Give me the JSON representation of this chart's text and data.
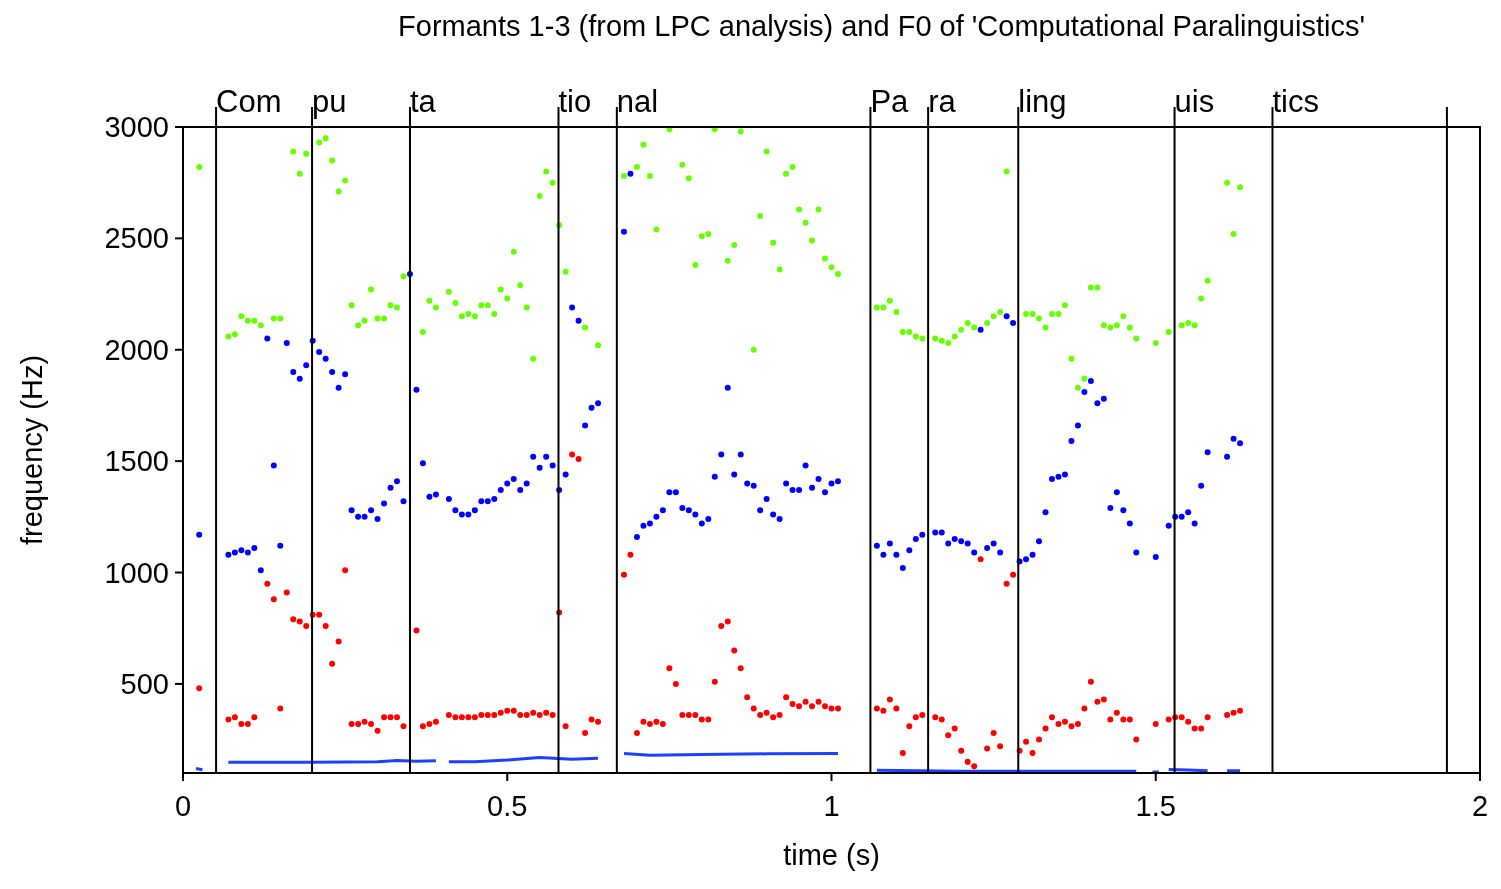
{
  "chart_data": {
    "type": "scatter",
    "title": "Formants 1-3 (from LPC analysis) and F0 of 'Computational Paralinguistics'",
    "xlabel": "time (s)",
    "ylabel": "frequency (Hz)",
    "xlim": [
      0,
      2
    ],
    "xticks": [
      0,
      0.5,
      1,
      1.5,
      2
    ],
    "ylim": [
      100,
      3000
    ],
    "yticks": [
      500,
      1000,
      1500,
      2000,
      2500,
      3000
    ],
    "marker": "circle",
    "grid": false,
    "ref_lines": [
      {
        "axis": "x",
        "value": 0.051,
        "label": "Com",
        "color": "#000000"
      },
      {
        "axis": "x",
        "value": 0.199,
        "label": "pu",
        "color": "#000000"
      },
      {
        "axis": "x",
        "value": 0.35,
        "label": "ta",
        "color": "#000000"
      },
      {
        "axis": "x",
        "value": 0.579,
        "label": "tio",
        "color": "#000000"
      },
      {
        "axis": "x",
        "value": 0.669,
        "label": "nal",
        "color": "#000000"
      },
      {
        "axis": "x",
        "value": 1.06,
        "label": "Pa",
        "color": "#000000"
      },
      {
        "axis": "x",
        "value": 1.149,
        "label": "ra",
        "color": "#000000"
      },
      {
        "axis": "x",
        "value": 1.288,
        "label": "ling",
        "color": "#000000"
      },
      {
        "axis": "x",
        "value": 1.529,
        "label": "uis",
        "color": "#000000"
      },
      {
        "axis": "x",
        "value": 1.68,
        "label": "tics",
        "color": "#000000"
      },
      {
        "axis": "x",
        "value": 1.949,
        "label": null,
        "color": "#000000"
      }
    ],
    "series": [
      {
        "color": "#ff0000",
        "x": [
          0.025,
          0.07,
          0.08,
          0.09,
          0.1,
          0.11,
          0.13,
          0.14,
          0.15,
          0.16,
          0.17,
          0.18,
          0.19,
          0.2,
          0.21,
          0.22,
          0.23,
          0.24,
          0.25,
          0.26,
          0.27,
          0.28,
          0.29,
          0.3,
          0.31,
          0.32,
          0.33,
          0.34,
          0.36,
          0.37,
          0.38,
          0.39,
          0.41,
          0.42,
          0.43,
          0.44,
          0.45,
          0.46,
          0.47,
          0.48,
          0.49,
          0.5,
          0.51,
          0.52,
          0.53,
          0.54,
          0.55,
          0.56,
          0.57,
          0.58,
          0.59,
          0.6,
          0.61,
          0.62,
          0.63,
          0.64,
          0.68,
          0.69,
          0.7,
          0.71,
          0.72,
          0.73,
          0.74,
          0.75,
          0.76,
          0.77,
          0.78,
          0.79,
          0.8,
          0.81,
          0.82,
          0.83,
          0.84,
          0.85,
          0.86,
          0.87,
          0.88,
          0.89,
          0.9,
          0.91,
          0.92,
          0.93,
          0.94,
          0.95,
          0.96,
          0.97,
          0.98,
          0.99,
          1.0,
          1.01,
          1.07,
          1.08,
          1.09,
          1.1,
          1.11,
          1.12,
          1.13,
          1.14,
          1.16,
          1.17,
          1.18,
          1.19,
          1.2,
          1.21,
          1.22,
          1.23,
          1.24,
          1.25,
          1.26,
          1.27,
          1.28,
          1.29,
          1.3,
          1.31,
          1.32,
          1.33,
          1.34,
          1.35,
          1.36,
          1.37,
          1.38,
          1.39,
          1.4,
          1.41,
          1.42,
          1.43,
          1.44,
          1.45,
          1.46,
          1.47,
          1.5,
          1.52,
          1.53,
          1.54,
          1.55,
          1.56,
          1.57,
          1.58,
          1.61,
          1.62,
          1.63
        ],
        "values": [
          480,
          340,
          350,
          320,
          320,
          350,
          950,
          880,
          390,
          910,
          790,
          780,
          760,
          810,
          810,
          760,
          590,
          690,
          1010,
          320,
          320,
          330,
          320,
          290,
          350,
          350,
          350,
          310,
          740,
          310,
          320,
          330,
          360,
          350,
          350,
          350,
          350,
          360,
          360,
          360,
          370,
          380,
          380,
          360,
          360,
          370,
          360,
          370,
          360,
          820,
          310,
          1530,
          1510,
          280,
          340,
          330,
          990,
          1080,
          280,
          330,
          320,
          330,
          320,
          570,
          500,
          360,
          360,
          360,
          340,
          340,
          510,
          760,
          780,
          650,
          570,
          440,
          390,
          360,
          370,
          350,
          360,
          440,
          410,
          400,
          420,
          400,
          420,
          400,
          390,
          390,
          390,
          380,
          430,
          390,
          190,
          310,
          350,
          360,
          350,
          340,
          270,
          300,
          200,
          150,
          130,
          1060,
          210,
          280,
          220,
          950,
          990,
          200,
          240,
          190,
          250,
          300,
          350,
          320,
          330,
          310,
          320,
          390,
          510,
          420,
          430,
          340,
          370,
          340,
          340,
          250,
          320,
          340,
          350,
          350,
          330,
          300,
          300,
          350,
          360,
          370,
          380
        ]
      },
      {
        "color": "#0000ff",
        "x": [
          0.025,
          0.07,
          0.08,
          0.09,
          0.1,
          0.11,
          0.12,
          0.13,
          0.14,
          0.15,
          0.16,
          0.17,
          0.18,
          0.19,
          0.2,
          0.21,
          0.22,
          0.23,
          0.24,
          0.25,
          0.26,
          0.27,
          0.28,
          0.29,
          0.3,
          0.31,
          0.32,
          0.33,
          0.34,
          0.35,
          0.36,
          0.37,
          0.38,
          0.39,
          0.41,
          0.42,
          0.43,
          0.44,
          0.45,
          0.46,
          0.47,
          0.48,
          0.49,
          0.5,
          0.51,
          0.52,
          0.53,
          0.54,
          0.55,
          0.56,
          0.57,
          0.58,
          0.59,
          0.6,
          0.61,
          0.62,
          0.63,
          0.64,
          0.68,
          0.69,
          0.7,
          0.71,
          0.72,
          0.73,
          0.74,
          0.75,
          0.76,
          0.77,
          0.78,
          0.79,
          0.8,
          0.81,
          0.82,
          0.83,
          0.84,
          0.85,
          0.86,
          0.87,
          0.88,
          0.89,
          0.9,
          0.91,
          0.92,
          0.93,
          0.94,
          0.95,
          0.96,
          0.97,
          0.98,
          0.99,
          1.0,
          1.01,
          1.07,
          1.08,
          1.09,
          1.1,
          1.11,
          1.12,
          1.13,
          1.14,
          1.16,
          1.17,
          1.18,
          1.19,
          1.2,
          1.21,
          1.22,
          1.23,
          1.24,
          1.25,
          1.26,
          1.27,
          1.28,
          1.29,
          1.3,
          1.31,
          1.32,
          1.33,
          1.34,
          1.35,
          1.36,
          1.37,
          1.38,
          1.39,
          1.4,
          1.41,
          1.42,
          1.43,
          1.44,
          1.45,
          1.46,
          1.47,
          1.5,
          1.52,
          1.53,
          1.54,
          1.55,
          1.56,
          1.57,
          1.58,
          1.61,
          1.62,
          1.63
        ],
        "values": [
          1170,
          1080,
          1090,
          1100,
          1090,
          1110,
          1010,
          2050,
          1480,
          1120,
          2030,
          1900,
          1870,
          1930,
          2040,
          1990,
          1960,
          1900,
          1830,
          1890,
          1280,
          1250,
          1250,
          1280,
          1240,
          1310,
          1380,
          1410,
          1320,
          2340,
          1820,
          1490,
          1340,
          1350,
          1330,
          1280,
          1260,
          1260,
          1280,
          1320,
          1320,
          1330,
          1370,
          1400,
          1420,
          1370,
          1400,
          1520,
          1470,
          1520,
          1480,
          1370,
          1440,
          2190,
          2130,
          1660,
          1740,
          1760,
          2530,
          2790,
          1160,
          1210,
          1220,
          1250,
          1280,
          1360,
          1360,
          1290,
          1280,
          1260,
          1220,
          1240,
          1430,
          1530,
          1830,
          1440,
          1530,
          1400,
          1390,
          1280,
          1330,
          1260,
          1240,
          1400,
          1370,
          1370,
          1480,
          1380,
          1420,
          1360,
          1400,
          1410,
          1120,
          1080,
          1130,
          1080,
          1020,
          1100,
          1150,
          1170,
          1180,
          1180,
          1130,
          1150,
          1140,
          1130,
          1090,
          2090,
          1110,
          1130,
          1090,
          2150,
          2120,
          1050,
          1060,
          1080,
          1140,
          1270,
          1420,
          1430,
          1440,
          1590,
          1660,
          1810,
          1860,
          1760,
          1780,
          1290,
          1360,
          1280,
          1220,
          1090,
          1070,
          1210,
          1250,
          1250,
          1270,
          1220,
          1390,
          1540,
          1520,
          1600,
          1580
        ]
      },
      {
        "color": "#66ff00",
        "x": [
          0.025,
          0.07,
          0.08,
          0.09,
          0.1,
          0.11,
          0.12,
          0.14,
          0.15,
          0.17,
          0.18,
          0.19,
          0.21,
          0.22,
          0.23,
          0.24,
          0.25,
          0.26,
          0.27,
          0.28,
          0.29,
          0.3,
          0.31,
          0.32,
          0.33,
          0.34,
          0.37,
          0.38,
          0.39,
          0.41,
          0.42,
          0.43,
          0.44,
          0.45,
          0.46,
          0.47,
          0.48,
          0.49,
          0.5,
          0.51,
          0.52,
          0.53,
          0.54,
          0.55,
          0.56,
          0.57,
          0.58,
          0.59,
          0.62,
          0.64,
          0.68,
          0.7,
          0.71,
          0.72,
          0.73,
          0.75,
          0.77,
          0.78,
          0.79,
          0.8,
          0.81,
          0.82,
          0.84,
          0.85,
          0.86,
          0.88,
          0.89,
          0.9,
          0.91,
          0.92,
          0.93,
          0.94,
          0.95,
          0.96,
          0.97,
          0.98,
          0.99,
          1.0,
          1.01,
          1.07,
          1.08,
          1.09,
          1.1,
          1.11,
          1.12,
          1.13,
          1.14,
          1.16,
          1.17,
          1.18,
          1.19,
          1.2,
          1.21,
          1.22,
          1.24,
          1.25,
          1.26,
          1.27,
          1.3,
          1.31,
          1.32,
          1.33,
          1.34,
          1.35,
          1.36,
          1.37,
          1.38,
          1.39,
          1.4,
          1.41,
          1.42,
          1.43,
          1.44,
          1.45,
          1.46,
          1.47,
          1.5,
          1.52,
          1.54,
          1.55,
          1.56,
          1.57,
          1.58,
          1.61,
          1.62,
          1.63
        ],
        "values": [
          2820,
          2060,
          2070,
          2150,
          2130,
          2130,
          2110,
          2140,
          2140,
          2890,
          2790,
          2880,
          2930,
          2950,
          2850,
          2710,
          2760,
          2200,
          2110,
          2130,
          2270,
          2140,
          2140,
          2200,
          2190,
          2330,
          2080,
          2220,
          2190,
          2260,
          2210,
          2150,
          2160,
          2150,
          2200,
          2200,
          2160,
          2270,
          2230,
          2440,
          2290,
          2190,
          1960,
          2690,
          2800,
          2750,
          2560,
          2350,
          2100,
          2020,
          2780,
          2820,
          2920,
          2780,
          2540,
          2990,
          2830,
          2770,
          2380,
          2510,
          2520,
          2990,
          2400,
          2470,
          2980,
          2000,
          2600,
          2890,
          2480,
          2360,
          2790,
          2820,
          2630,
          2570,
          2490,
          2630,
          2410,
          2370,
          2340,
          2190,
          2190,
          2220,
          2170,
          2080,
          2080,
          2060,
          2050,
          2050,
          2040,
          2030,
          2060,
          2090,
          2120,
          2100,
          2120,
          2150,
          2170,
          2800,
          2160,
          2160,
          2140,
          2100,
          2160,
          2160,
          2200,
          1960,
          1830,
          1870,
          2280,
          2280,
          2110,
          2100,
          2110,
          2150,
          2100,
          2050,
          2030,
          2080,
          2110,
          2120,
          2110,
          2230,
          2310,
          2750,
          2520,
          2730
        ]
      },
      {
        "type": "line",
        "marker": "none",
        "line_style": "solid",
        "color": "#1f3fff",
        "x": [
          0.02,
          0.03,
          0.035,
          0.07,
          0.2,
          0.3,
          0.33,
          0.36,
          0.39,
          0.395,
          0.41,
          0.45,
          0.5,
          0.55,
          0.6,
          0.64,
          0.645,
          0.68,
          0.72,
          0.8,
          0.9,
          1.01,
          1.015,
          1.07,
          1.2,
          1.3,
          1.47,
          1.48,
          1.495,
          1.505,
          1.51,
          1.52,
          1.55,
          1.58,
          1.585,
          1.61,
          1.63
        ],
        "values": [
          120,
          115,
          null,
          148,
          148,
          150,
          156,
          153,
          155,
          null,
          150,
          150,
          158,
          170,
          162,
          166,
          null,
          187,
          180,
          183,
          186,
          187,
          null,
          112,
          108,
          108,
          108,
          null,
          104,
          104,
          null,
          116,
          113,
          110,
          null,
          110,
          110
        ]
      }
    ]
  }
}
